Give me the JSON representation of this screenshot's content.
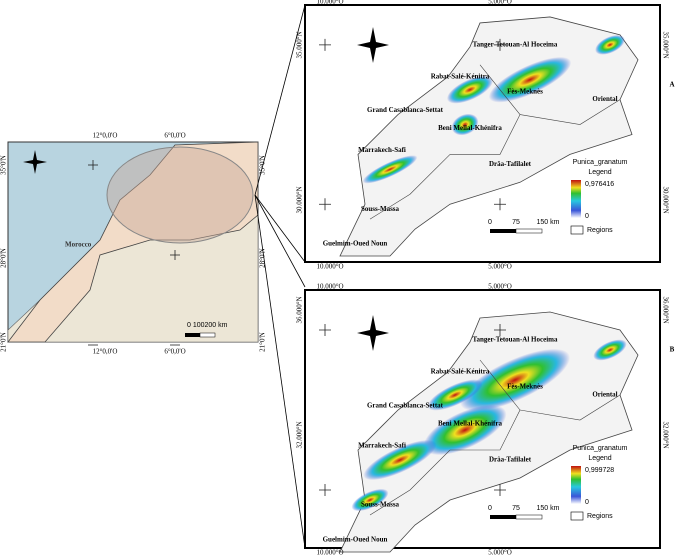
{
  "left_map": {
    "top_lon": [
      "12°0,0'O",
      "6°0,0'O"
    ],
    "bottom_lon": [
      "12°0,0'O",
      "6°0,0'O"
    ],
    "left_lat": [
      "35°0'N",
      "28°0'N",
      "21°0'N"
    ],
    "right_lat": [
      "35°0'N",
      "28°0'N",
      "21°0'N"
    ],
    "country": "Morocco",
    "scale": "0  100200 km"
  },
  "panels": [
    {
      "label": "A",
      "lon": [
        "10.000°O",
        "5.000°O"
      ],
      "lat": [
        "35.000°N",
        "30.000°N"
      ],
      "legend": {
        "title": [
          "Punica_granatum",
          "Legend"
        ],
        "max": "0,976416",
        "min": "0"
      },
      "scale": [
        "0",
        "75",
        "150 km"
      ],
      "regions_label": "Regions",
      "regions": [
        "Tanger-Tetouan-Al Hoceima",
        "Rabat-Salé-Kénitra",
        "Fès-Meknès",
        "Oriental",
        "Grand Casablanca-Settat",
        "Beni Mellal-Khénifra",
        "Marrakech-Safi",
        "Drâa-Tafilalet",
        "Souss-Massa",
        "Guelmim-Oued Noun"
      ]
    },
    {
      "label": "B",
      "lon": [
        "10.000°O",
        "5.000°O"
      ],
      "lat": [
        "36.000°N",
        "32.000°N"
      ],
      "legend": {
        "title": [
          "Punica_granatum",
          "Legend"
        ],
        "max": "0,999728",
        "min": "0"
      },
      "scale": [
        "0",
        "75",
        "150 km"
      ],
      "regions_label": "Regions",
      "regions": [
        "Tanger-Tetouan-Al Hoceima",
        "Rabat-Salé-Kénitra",
        "Fès-Meknès",
        "Oriental",
        "Grand Casablanca-Settat",
        "Beni Mellal-Khénifra",
        "Marrakech-Safi",
        "Drâa-Tafilalet",
        "Souss-Massa",
        "Guelmim-Oued Noun"
      ]
    }
  ]
}
